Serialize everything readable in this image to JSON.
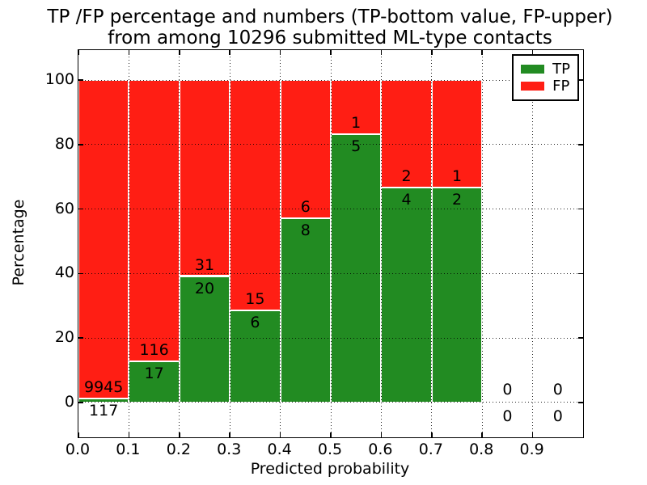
{
  "chart_data": {
    "type": "bar",
    "stacked": true,
    "title": "TP /FP percentage and numbers (TP-bottom value, FP-upper)\nfrom among 10296 submitted ML-type contacts",
    "title_line1": "TP /FP percentage and numbers (TP-bottom value, FP-upper)",
    "title_line2": "from among 10296 submitted ML-type contacts",
    "xlabel": "Predicted probability",
    "ylabel": "Percentage",
    "xlim": [
      0.0,
      1.0
    ],
    "ylim": [
      -10.8,
      109.3
    ],
    "grid": true,
    "legend_position": "upper right",
    "total_contacts": 10296,
    "yticks": [
      0,
      20,
      40,
      60,
      80,
      100
    ],
    "xticks": [
      0.0,
      0.1,
      0.2,
      0.3,
      0.4,
      0.5,
      0.6,
      0.7,
      0.8,
      0.9
    ],
    "xtick_labels": [
      "0.0",
      "0.1",
      "0.2",
      "0.3",
      "0.4",
      "0.5",
      "0.6",
      "0.7",
      "0.8",
      "0.9"
    ],
    "bin_width": 0.1,
    "series": [
      {
        "name": "TP",
        "color": "#228B22"
      },
      {
        "name": "FP",
        "color": "#FF1E14"
      }
    ],
    "bins": [
      {
        "x0": 0.0,
        "x1": 0.1,
        "tp_count": 117,
        "fp_count": 9945,
        "tp_pct": 1.16,
        "fp_pct": 98.84
      },
      {
        "x0": 0.1,
        "x1": 0.2,
        "tp_count": 17,
        "fp_count": 116,
        "tp_pct": 12.78,
        "fp_pct": 87.22
      },
      {
        "x0": 0.2,
        "x1": 0.3,
        "tp_count": 20,
        "fp_count": 31,
        "tp_pct": 39.22,
        "fp_pct": 60.78
      },
      {
        "x0": 0.3,
        "x1": 0.4,
        "tp_count": 6,
        "fp_count": 15,
        "tp_pct": 28.57,
        "fp_pct": 71.43
      },
      {
        "x0": 0.4,
        "x1": 0.5,
        "tp_count": 8,
        "fp_count": 6,
        "tp_pct": 57.14,
        "fp_pct": 42.86
      },
      {
        "x0": 0.5,
        "x1": 0.6,
        "tp_count": 5,
        "fp_count": 1,
        "tp_pct": 83.33,
        "fp_pct": 16.67
      },
      {
        "x0": 0.6,
        "x1": 0.7,
        "tp_count": 4,
        "fp_count": 2,
        "tp_pct": 66.67,
        "fp_pct": 33.33
      },
      {
        "x0": 0.7,
        "x1": 0.8,
        "tp_count": 2,
        "fp_count": 1,
        "tp_pct": 66.67,
        "fp_pct": 33.33
      },
      {
        "x0": 0.8,
        "x1": 0.9,
        "tp_count": 0,
        "fp_count": 0,
        "tp_pct": null,
        "fp_pct": null
      },
      {
        "x0": 0.9,
        "x1": 1.0,
        "tp_count": 0,
        "fp_count": 0,
        "tp_pct": null,
        "fp_pct": null
      }
    ]
  }
}
